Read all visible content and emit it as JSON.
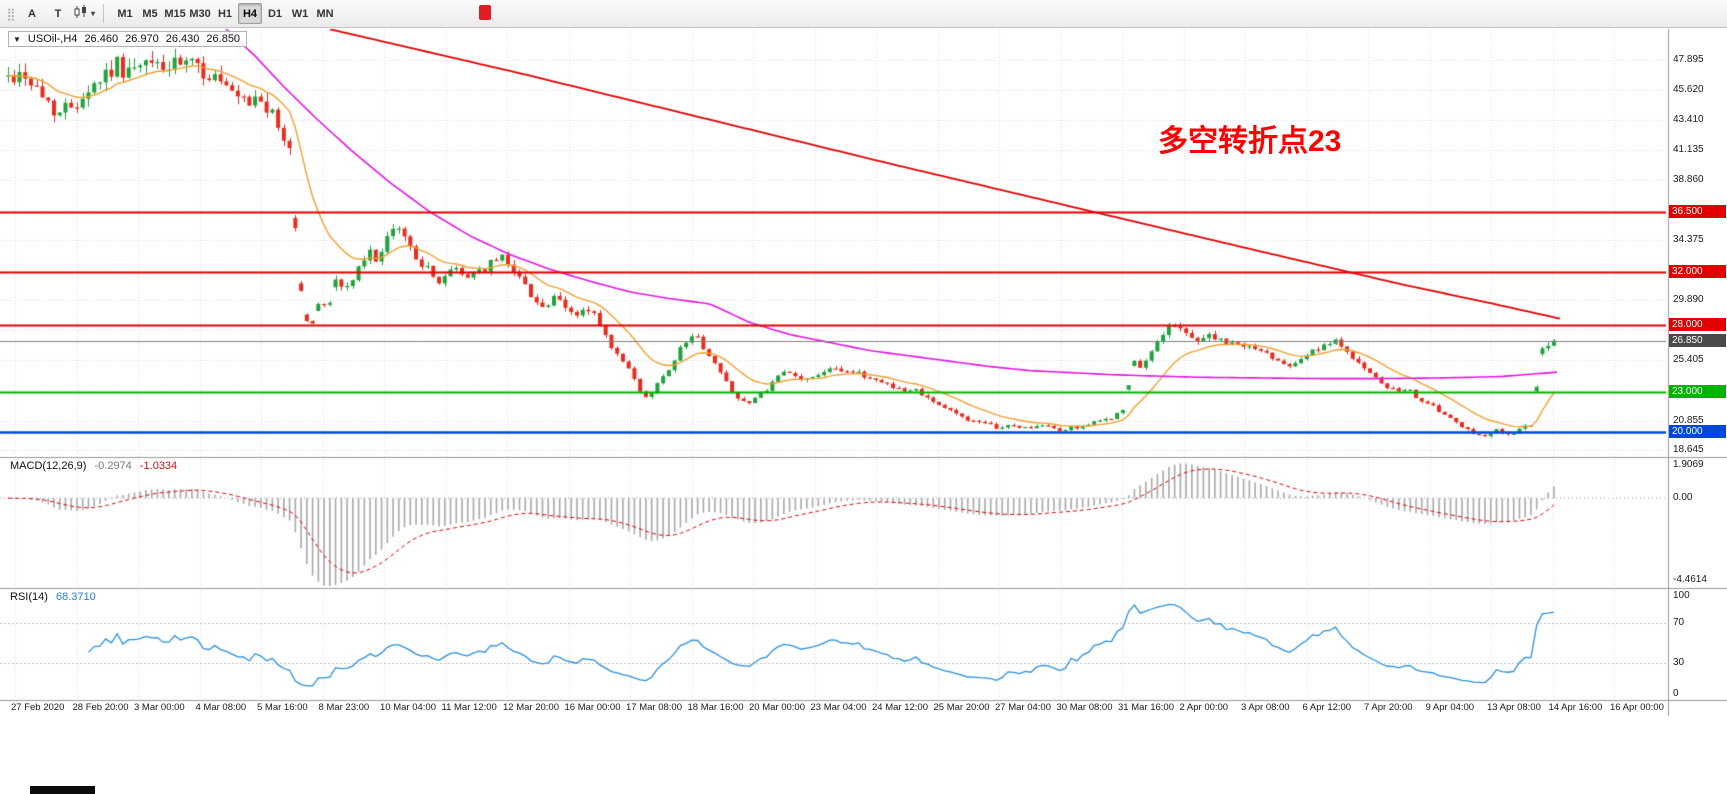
{
  "toolbar": {
    "grip_icon": "⣿",
    "buttons": [
      {
        "id": "annotate",
        "label": "A"
      },
      {
        "id": "text",
        "label": "T"
      }
    ],
    "chart_type_caret": "▾",
    "timeframes": [
      "M1",
      "M5",
      "M15",
      "M30",
      "H1",
      "H4",
      "D1",
      "W1",
      "MN"
    ],
    "selected_timeframe": "H4"
  },
  "chart": {
    "title_arrow": "▼",
    "symbol_period": "USOil-,H4",
    "open": "26.460",
    "high": "26.970",
    "low": "26.430",
    "close": "26.850",
    "annotation": {
      "text": "多空转折点23",
      "color": "#ff0000"
    },
    "axis_labels": [
      {
        "text": "47.895",
        "price": 47.895
      },
      {
        "text": "45.620",
        "price": 45.62
      },
      {
        "text": "43.410",
        "price": 43.41
      },
      {
        "text": "41.135",
        "price": 41.135
      },
      {
        "text": "38.860",
        "price": 38.86
      },
      {
        "text": "34.375",
        "price": 34.375
      },
      {
        "text": "29.890",
        "price": 29.89
      },
      {
        "text": "25.405",
        "price": 25.405
      },
      {
        "text": "20.855",
        "price": 20.855
      },
      {
        "text": "18.645",
        "price": 18.645
      }
    ],
    "levels": [
      {
        "label": "36.500",
        "price": 36.5,
        "color": "#e00000",
        "width": 2
      },
      {
        "label": "32.000",
        "price": 32.0,
        "color": "#e00000",
        "width": 2
      },
      {
        "label": "28.000",
        "price": 28.0,
        "color": "#e00000",
        "width": 2
      },
      {
        "label": "23.000",
        "price": 23.0,
        "color": "#00b300",
        "width": 2
      },
      {
        "label": "20.000",
        "price": 20.0,
        "color": "#0048d8",
        "width": 2.5
      }
    ],
    "bid_marker": {
      "label": "26.850",
      "price": 26.85,
      "color": "#4a4a4a"
    },
    "grid_prices": [
      18.645,
      20.855,
      23.13,
      25.405,
      27.615,
      29.89,
      32.1,
      34.375,
      36.585,
      38.86,
      41.135,
      43.41,
      45.62,
      47.895
    ],
    "dates": [
      "27 Feb 2020",
      "28 Feb 20:00",
      "3 Mar 00:00",
      "4 Mar 08:00",
      "5 Mar 16:00",
      "8 Mar 23:00",
      "10 Mar 04:00",
      "11 Mar 12:00",
      "12 Mar 20:00",
      "16 Mar 00:00",
      "17 Mar 08:00",
      "18 Mar 16:00",
      "20 Mar 00:00",
      "23 Mar 04:00",
      "24 Mar 12:00",
      "25 Mar 20:00",
      "27 Mar 04:00",
      "30 Mar 08:00",
      "31 Mar 16:00",
      "2 Apr 00:00",
      "3 Apr 08:00",
      "6 Apr 12:00",
      "7 Apr 20:00",
      "9 Apr 04:00",
      "13 Apr 08:00",
      "14 Apr 16:00",
      "16 Apr 00:00"
    ]
  },
  "macd": {
    "label": "MACD(12,26,9)",
    "macd_value": "-0.2974",
    "signal_value": "-1.0334",
    "scale": [
      "1.9069",
      "0.00",
      "-4.4614"
    ],
    "scale_values": [
      1.9069,
      0.0,
      -4.4614
    ]
  },
  "rsi": {
    "label": "RSI(14)",
    "value": "68.3710",
    "scale": [
      "100",
      "70",
      "30",
      "0"
    ],
    "scale_values": [
      100,
      70,
      30,
      0
    ]
  },
  "chart_data": {
    "type": "candlestick",
    "symbol": "USOil-",
    "timeframe": "H4",
    "last_bar_ohlc": {
      "o": 26.46,
      "h": 26.97,
      "l": 26.43,
      "c": 26.85
    },
    "price_anchors": [
      [
        8,
        46.6
      ],
      [
        25,
        46.9
      ],
      [
        40,
        45.3
      ],
      [
        60,
        43.9
      ],
      [
        75,
        44.8
      ],
      [
        95,
        46.2
      ],
      [
        115,
        47.5
      ],
      [
        135,
        47.0
      ],
      [
        155,
        47.7
      ],
      [
        170,
        47.2
      ],
      [
        185,
        47.6
      ],
      [
        200,
        47.1
      ],
      [
        215,
        46.6
      ],
      [
        232,
        45.1
      ],
      [
        248,
        44.4
      ],
      [
        260,
        45.2
      ],
      [
        272,
        43.6
      ],
      [
        284,
        41.9
      ],
      [
        292,
        41.2
      ],
      [
        297,
        32.6
      ],
      [
        305,
        28.6
      ],
      [
        312,
        27.9
      ],
      [
        320,
        29.9
      ],
      [
        328,
        29.4
      ],
      [
        336,
        31.4
      ],
      [
        344,
        30.7
      ],
      [
        352,
        31.3
      ],
      [
        360,
        32.4
      ],
      [
        370,
        33.4
      ],
      [
        378,
        33.0
      ],
      [
        388,
        34.4
      ],
      [
        398,
        35.5
      ],
      [
        406,
        34.3
      ],
      [
        416,
        33.2
      ],
      [
        426,
        32.3
      ],
      [
        436,
        31.2
      ],
      [
        446,
        31.8
      ],
      [
        456,
        32.2
      ],
      [
        466,
        31.6
      ],
      [
        476,
        32.1
      ],
      [
        486,
        32.3
      ],
      [
        496,
        32.9
      ],
      [
        504,
        33.1
      ],
      [
        514,
        32.2
      ],
      [
        524,
        31.0
      ],
      [
        534,
        30.1
      ],
      [
        544,
        29.2
      ],
      [
        554,
        30.0
      ],
      [
        564,
        29.4
      ],
      [
        574,
        28.7
      ],
      [
        584,
        29.2
      ],
      [
        594,
        28.8
      ],
      [
        604,
        27.3
      ],
      [
        614,
        26.0
      ],
      [
        624,
        25.1
      ],
      [
        634,
        24.0
      ],
      [
        644,
        22.3
      ],
      [
        652,
        23.1
      ],
      [
        662,
        24.0
      ],
      [
        672,
        25.2
      ],
      [
        682,
        26.4
      ],
      [
        690,
        27.4
      ],
      [
        700,
        26.8
      ],
      [
        710,
        25.6
      ],
      [
        720,
        24.5
      ],
      [
        730,
        23.3
      ],
      [
        740,
        22.4
      ],
      [
        750,
        22.1
      ],
      [
        760,
        22.8
      ],
      [
        772,
        23.6
      ],
      [
        784,
        24.5
      ],
      [
        796,
        24.1
      ],
      [
        808,
        23.9
      ],
      [
        820,
        24.4
      ],
      [
        832,
        25.0
      ],
      [
        844,
        24.6
      ],
      [
        856,
        24.4
      ],
      [
        868,
        24.1
      ],
      [
        880,
        23.8
      ],
      [
        892,
        23.5
      ],
      [
        904,
        23.0
      ],
      [
        916,
        23.2
      ],
      [
        928,
        22.6
      ],
      [
        940,
        22.0
      ],
      [
        952,
        21.5
      ],
      [
        964,
        21.1
      ],
      [
        976,
        20.7
      ],
      [
        988,
        20.5
      ],
      [
        1000,
        20.3
      ],
      [
        1012,
        20.5
      ],
      [
        1024,
        20.3
      ],
      [
        1036,
        20.4
      ],
      [
        1048,
        20.4
      ],
      [
        1060,
        20.1
      ],
      [
        1072,
        20.3
      ],
      [
        1084,
        20.5
      ],
      [
        1096,
        20.7
      ],
      [
        1108,
        21.0
      ],
      [
        1120,
        21.4
      ],
      [
        1126,
        21.9
      ],
      [
        1132,
        25.4
      ],
      [
        1140,
        24.7
      ],
      [
        1148,
        25.5
      ],
      [
        1158,
        26.9
      ],
      [
        1170,
        28.2
      ],
      [
        1180,
        27.7
      ],
      [
        1190,
        27.1
      ],
      [
        1200,
        26.9
      ],
      [
        1210,
        27.3
      ],
      [
        1220,
        26.8
      ],
      [
        1230,
        26.5
      ],
      [
        1242,
        26.6
      ],
      [
        1254,
        26.2
      ],
      [
        1266,
        25.9
      ],
      [
        1278,
        25.4
      ],
      [
        1290,
        25.1
      ],
      [
        1302,
        25.6
      ],
      [
        1314,
        26.1
      ],
      [
        1326,
        26.4
      ],
      [
        1338,
        26.8
      ],
      [
        1348,
        26.1
      ],
      [
        1358,
        25.2
      ],
      [
        1368,
        24.4
      ],
      [
        1378,
        23.8
      ],
      [
        1388,
        23.3
      ],
      [
        1398,
        23.0
      ],
      [
        1408,
        23.1
      ],
      [
        1418,
        22.6
      ],
      [
        1428,
        22.1
      ],
      [
        1438,
        21.6
      ],
      [
        1448,
        21.1
      ],
      [
        1458,
        20.5
      ],
      [
        1468,
        20.1
      ],
      [
        1478,
        19.8
      ],
      [
        1488,
        19.8
      ],
      [
        1498,
        20.2
      ],
      [
        1508,
        19.7
      ],
      [
        1518,
        20.1
      ],
      [
        1528,
        20.5
      ],
      [
        1534,
        20.6
      ],
      [
        1540,
        26.4
      ],
      [
        1548,
        26.6
      ],
      [
        1556,
        26.85
      ]
    ],
    "ma_magenta_anchors": [
      [
        225,
        50.3
      ],
      [
        255,
        48.2
      ],
      [
        285,
        45.8
      ],
      [
        315,
        43.6
      ],
      [
        350,
        41.2
      ],
      [
        390,
        38.7
      ],
      [
        430,
        36.5
      ],
      [
        470,
        34.7
      ],
      [
        510,
        33.3
      ],
      [
        550,
        32.2
      ],
      [
        590,
        31.3
      ],
      [
        630,
        30.5
      ],
      [
        670,
        30.0
      ],
      [
        710,
        29.6
      ],
      [
        750,
        28.2
      ],
      [
        790,
        27.3
      ],
      [
        830,
        26.7
      ],
      [
        870,
        26.1
      ],
      [
        910,
        25.7
      ],
      [
        950,
        25.3
      ],
      [
        990,
        24.9
      ],
      [
        1030,
        24.6
      ],
      [
        1070,
        24.45
      ],
      [
        1110,
        24.3
      ],
      [
        1150,
        24.2
      ],
      [
        1200,
        24.1
      ],
      [
        1260,
        24.05
      ],
      [
        1320,
        24.0
      ],
      [
        1380,
        24.0
      ],
      [
        1440,
        24.05
      ],
      [
        1500,
        24.15
      ],
      [
        1560,
        24.5
      ]
    ],
    "ma_red_anchors": [
      [
        330,
        50.2
      ],
      [
        520,
        46.9
      ],
      [
        700,
        43.6
      ],
      [
        880,
        40.3
      ],
      [
        1060,
        37.1
      ],
      [
        1240,
        33.9
      ],
      [
        1400,
        31.1
      ],
      [
        1500,
        29.5
      ],
      [
        1560,
        28.5
      ]
    ],
    "colors": {
      "bull": "#1fa33c",
      "bear": "#e82c1e",
      "ma_fast": "#f0a030",
      "ma_mid": "#e316e3",
      "ma_slow": "#e00000",
      "macd_hist": "#a8a8a8",
      "macd_signal": "#dd0000",
      "rsi": "#2a8fdd",
      "grid": "#dcdcdc",
      "bid_line": "#808080"
    }
  }
}
